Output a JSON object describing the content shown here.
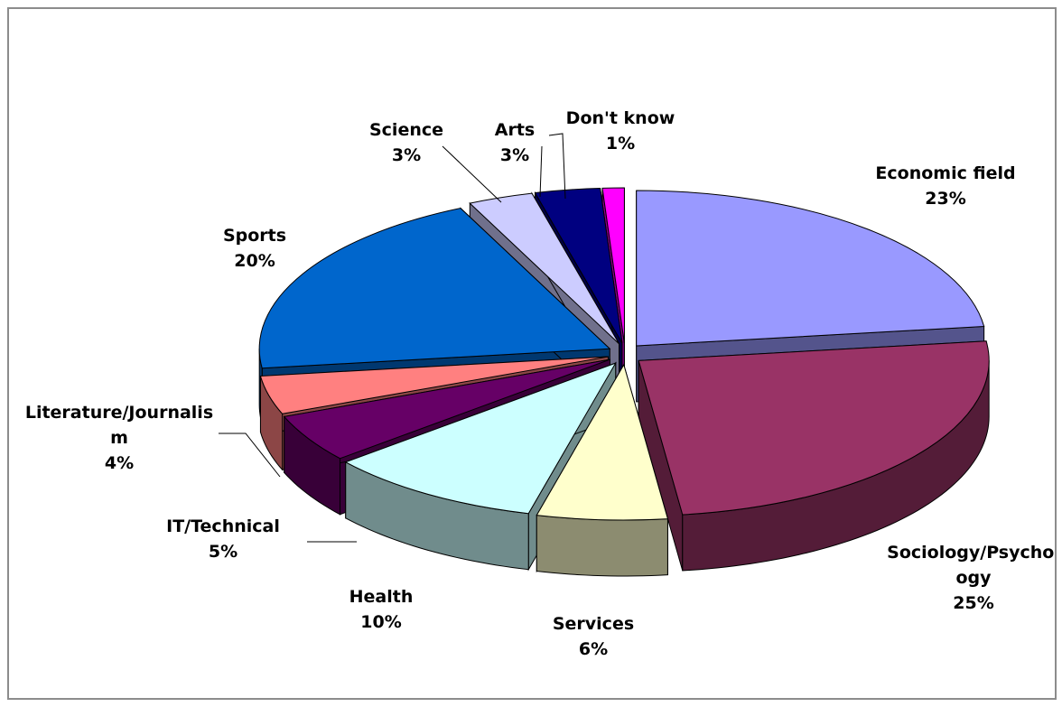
{
  "chart_data": {
    "type": "pie3d",
    "categories": [
      "Economic field",
      "Sociology/Psychology",
      "Services",
      "Health",
      "IT/Technical",
      "Literature/Journalism",
      "Sports",
      "Science",
      "Arts",
      "Don't know"
    ],
    "values": [
      23,
      25,
      6,
      10,
      5,
      4,
      20,
      3,
      3,
      1
    ],
    "value_labels": [
      "23%",
      "25%",
      "6%",
      "10%",
      "5%",
      "4%",
      "20%",
      "3%",
      "3%",
      "1%"
    ],
    "colors": [
      "#9999ff",
      "#993366",
      "#ffffcc",
      "#ccffff",
      "#660066",
      "#ff8080",
      "#0066cc",
      "#ccccff",
      "#000080",
      "#ff00ff"
    ]
  }
}
